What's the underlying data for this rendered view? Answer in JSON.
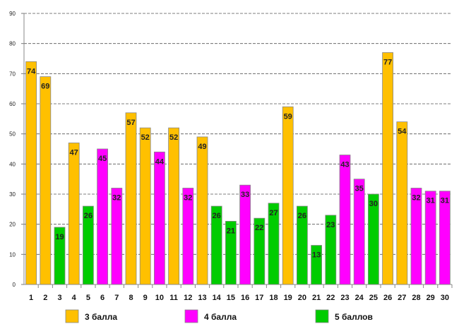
{
  "chart_data": {
    "type": "bar",
    "title": "",
    "xlabel": "",
    "ylabel": "",
    "ylim": [
      0,
      90
    ],
    "yticks": [
      0,
      10,
      20,
      30,
      40,
      50,
      60,
      70,
      80,
      90
    ],
    "grid": true,
    "legend_position": "bottom",
    "categories": [
      "1",
      "2",
      "3",
      "4",
      "5",
      "6",
      "7",
      "8",
      "9",
      "10",
      "11",
      "12",
      "13",
      "14",
      "15",
      "16",
      "17",
      "18",
      "19",
      "20",
      "21",
      "22",
      "23",
      "24",
      "25",
      "26",
      "27",
      "28",
      "29",
      "30"
    ],
    "values": [
      74,
      69,
      19,
      47,
      26,
      45,
      32,
      57,
      52,
      44,
      52,
      32,
      49,
      26,
      21,
      33,
      22,
      27,
      59,
      26,
      13,
      23,
      43,
      35,
      30,
      77,
      54,
      32,
      31,
      31
    ],
    "bar_groups": [
      0,
      0,
      2,
      0,
      2,
      1,
      1,
      0,
      0,
      1,
      0,
      1,
      0,
      2,
      2,
      1,
      2,
      2,
      0,
      2,
      2,
      2,
      1,
      1,
      2,
      0,
      0,
      1,
      1,
      1
    ],
    "legend": [
      {
        "label": "3 балла",
        "color": "#FFC000"
      },
      {
        "label": "4 балла",
        "color": "#FF00FF"
      },
      {
        "label": "5 баллов",
        "color": "#00CC00"
      }
    ],
    "border_color": "#888888"
  }
}
